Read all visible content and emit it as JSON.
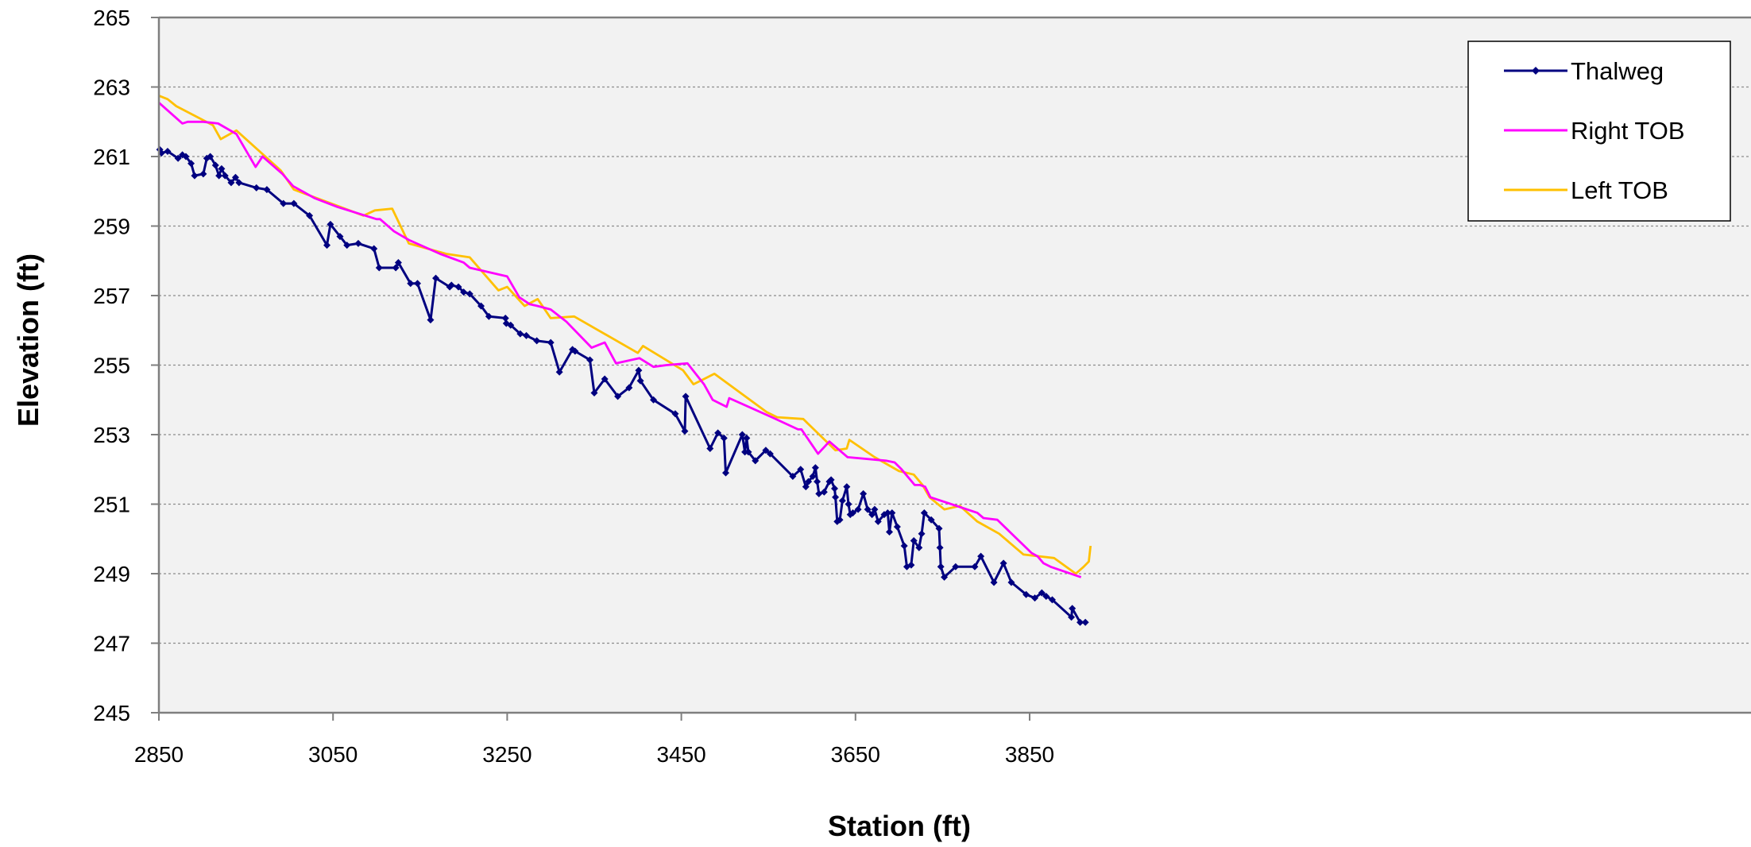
{
  "chart_data": {
    "type": "line",
    "title": "",
    "xlabel": "Station (ft)",
    "ylabel": "Elevation (ft)",
    "xlim": [
      2850,
      4050
    ],
    "ylim": [
      245,
      265
    ],
    "x_ticks": [
      2850,
      3050,
      3250,
      3450,
      3650,
      3850
    ],
    "y_ticks": [
      245,
      247,
      249,
      251,
      253,
      255,
      257,
      259,
      261,
      263,
      265
    ],
    "grid": "horizontal dotted",
    "legend_position": "top-right",
    "colors": {
      "plot_background": "#f2f2f2",
      "grid": "#8c8c8c",
      "axis": "#7f7f7f"
    },
    "series": [
      {
        "name": "Thalweg",
        "color": "#000080",
        "marker": "diamond",
        "points": [
          [
            2851,
            261.2
          ],
          [
            2853,
            261.1
          ],
          [
            2860,
            261.15
          ],
          [
            2872,
            260.95
          ],
          [
            2877,
            261.05
          ],
          [
            2881,
            261.0
          ],
          [
            2887,
            260.8
          ],
          [
            2891,
            260.45
          ],
          [
            2901,
            260.5
          ],
          [
            2905,
            260.95
          ],
          [
            2909,
            261.0
          ],
          [
            2915,
            260.75
          ],
          [
            2919,
            260.45
          ],
          [
            2922,
            260.65
          ],
          [
            2926,
            260.45
          ],
          [
            2933,
            260.25
          ],
          [
            2938,
            260.4
          ],
          [
            2942,
            260.25
          ],
          [
            2962,
            260.1
          ],
          [
            2974,
            260.05
          ],
          [
            2993,
            259.65
          ],
          [
            3005,
            259.65
          ],
          [
            3023,
            259.3
          ],
          [
            3043,
            258.45
          ],
          [
            3047,
            259.05
          ],
          [
            3058,
            258.7
          ],
          [
            3066,
            258.45
          ],
          [
            3079,
            258.5
          ],
          [
            3097,
            258.35
          ],
          [
            3103,
            257.8
          ],
          [
            3122,
            257.8
          ],
          [
            3125,
            257.95
          ],
          [
            3139,
            257.35
          ],
          [
            3147,
            257.35
          ],
          [
            3162,
            256.3
          ],
          [
            3168,
            257.5
          ],
          [
            3184,
            257.25
          ],
          [
            3186,
            257.3
          ],
          [
            3194,
            257.25
          ],
          [
            3200,
            257.1
          ],
          [
            3207,
            257.05
          ],
          [
            3220,
            256.7
          ],
          [
            3229,
            256.4
          ],
          [
            3248,
            256.35
          ],
          [
            3249,
            256.2
          ],
          [
            3254,
            256.15
          ],
          [
            3265,
            255.9
          ],
          [
            3272,
            255.85
          ],
          [
            3284,
            255.7
          ],
          [
            3300,
            255.65
          ],
          [
            3310,
            254.8
          ],
          [
            3325,
            255.45
          ],
          [
            3328,
            255.4
          ],
          [
            3345,
            255.15
          ],
          [
            3350,
            254.2
          ],
          [
            3362,
            254.6
          ],
          [
            3377,
            254.1
          ],
          [
            3390,
            254.35
          ],
          [
            3401,
            254.85
          ],
          [
            3403,
            254.55
          ],
          [
            3418,
            254.0
          ],
          [
            3443,
            253.6
          ],
          [
            3454,
            253.1
          ],
          [
            3455,
            254.1
          ],
          [
            3483,
            252.6
          ],
          [
            3492,
            253.05
          ],
          [
            3499,
            252.9
          ],
          [
            3501,
            251.9
          ],
          [
            3520,
            253.0
          ],
          [
            3523,
            252.5
          ],
          [
            3525,
            252.9
          ],
          [
            3527,
            252.5
          ],
          [
            3535,
            252.25
          ],
          [
            3547,
            252.55
          ],
          [
            3552,
            252.45
          ],
          [
            3578,
            251.8
          ],
          [
            3587,
            252.0
          ],
          [
            3593,
            251.5
          ],
          [
            3596,
            251.65
          ],
          [
            3601,
            251.8
          ],
          [
            3604,
            252.05
          ],
          [
            3606,
            251.65
          ],
          [
            3608,
            251.3
          ],
          [
            3614,
            251.35
          ],
          [
            3620,
            251.65
          ],
          [
            3622,
            251.7
          ],
          [
            3626,
            251.45
          ],
          [
            3627,
            251.2
          ],
          [
            3629,
            250.5
          ],
          [
            3632,
            250.55
          ],
          [
            3635,
            251.1
          ],
          [
            3640,
            251.5
          ],
          [
            3642,
            251.0
          ],
          [
            3644,
            250.7
          ],
          [
            3647,
            250.75
          ],
          [
            3653,
            250.85
          ],
          [
            3659,
            251.3
          ],
          [
            3664,
            250.85
          ],
          [
            3669,
            250.7
          ],
          [
            3672,
            250.85
          ],
          [
            3676,
            250.5
          ],
          [
            3683,
            250.7
          ],
          [
            3687,
            250.75
          ],
          [
            3689,
            250.2
          ],
          [
            3692,
            250.75
          ],
          [
            3698,
            250.35
          ],
          [
            3706,
            249.8
          ],
          [
            3709,
            249.2
          ],
          [
            3714,
            249.25
          ],
          [
            3717,
            249.95
          ],
          [
            3723,
            249.75
          ],
          [
            3726,
            250.15
          ],
          [
            3729,
            250.75
          ],
          [
            3737,
            250.55
          ],
          [
            3746,
            250.3
          ],
          [
            3747,
            249.75
          ],
          [
            3748,
            249.2
          ],
          [
            3752,
            248.9
          ],
          [
            3765,
            249.2
          ],
          [
            3787,
            249.2
          ],
          [
            3794,
            249.5
          ],
          [
            3809,
            248.75
          ],
          [
            3820,
            249.3
          ],
          [
            3829,
            248.75
          ],
          [
            3846,
            248.4
          ],
          [
            3856,
            248.3
          ],
          [
            3864,
            248.45
          ],
          [
            3869,
            248.35
          ],
          [
            3876,
            248.25
          ],
          [
            3898,
            247.75
          ],
          [
            3899,
            248.0
          ],
          [
            3908,
            247.6
          ],
          [
            3914,
            247.6
          ]
        ]
      },
      {
        "name": "Right TOB",
        "color": "#ff00ff",
        "marker": "none",
        "points": [
          [
            2850,
            262.55
          ],
          [
            2877,
            261.95
          ],
          [
            2883,
            262.0
          ],
          [
            2901,
            262.0
          ],
          [
            2918,
            261.95
          ],
          [
            2939,
            261.65
          ],
          [
            2961,
            260.7
          ],
          [
            2969,
            261.0
          ],
          [
            2992,
            260.5
          ],
          [
            3004,
            260.15
          ],
          [
            3029,
            259.8
          ],
          [
            3055,
            259.55
          ],
          [
            3100,
            259.2
          ],
          [
            3104,
            259.2
          ],
          [
            3120,
            258.85
          ],
          [
            3137,
            258.6
          ],
          [
            3146,
            258.5
          ],
          [
            3173,
            258.2
          ],
          [
            3200,
            257.95
          ],
          [
            3207,
            257.8
          ],
          [
            3250,
            257.55
          ],
          [
            3264,
            256.95
          ],
          [
            3276,
            256.75
          ],
          [
            3285,
            256.7
          ],
          [
            3300,
            256.6
          ],
          [
            3318,
            256.25
          ],
          [
            3347,
            255.5
          ],
          [
            3362,
            255.65
          ],
          [
            3375,
            255.05
          ],
          [
            3402,
            255.2
          ],
          [
            3418,
            254.95
          ],
          [
            3433,
            255.0
          ],
          [
            3457,
            255.05
          ],
          [
            3476,
            254.45
          ],
          [
            3486,
            254.0
          ],
          [
            3502,
            253.8
          ],
          [
            3505,
            254.05
          ],
          [
            3554,
            253.5
          ],
          [
            3584,
            253.15
          ],
          [
            3588,
            253.15
          ],
          [
            3607,
            252.45
          ],
          [
            3620,
            252.8
          ],
          [
            3641,
            252.35
          ],
          [
            3685,
            252.25
          ],
          [
            3695,
            252.2
          ],
          [
            3703,
            252.0
          ],
          [
            3718,
            251.55
          ],
          [
            3724,
            251.55
          ],
          [
            3730,
            251.5
          ],
          [
            3736,
            251.2
          ],
          [
            3760,
            251.0
          ],
          [
            3790,
            250.75
          ],
          [
            3797,
            250.6
          ],
          [
            3813,
            250.55
          ],
          [
            3852,
            249.6
          ],
          [
            3859,
            249.5
          ],
          [
            3866,
            249.3
          ],
          [
            3874,
            249.2
          ],
          [
            3909,
            248.9
          ]
        ]
      },
      {
        "name": "Left TOB",
        "color": "#ffc000",
        "marker": "none",
        "points": [
          [
            2850,
            262.75
          ],
          [
            2860,
            262.65
          ],
          [
            2870,
            262.45
          ],
          [
            2912,
            261.9
          ],
          [
            2921,
            261.5
          ],
          [
            2939,
            261.75
          ],
          [
            2990,
            260.6
          ],
          [
            3005,
            260.05
          ],
          [
            3053,
            259.6
          ],
          [
            3085,
            259.3
          ],
          [
            3098,
            259.45
          ],
          [
            3118,
            259.5
          ],
          [
            3137,
            258.5
          ],
          [
            3180,
            258.2
          ],
          [
            3207,
            258.1
          ],
          [
            3240,
            257.15
          ],
          [
            3250,
            257.25
          ],
          [
            3270,
            256.7
          ],
          [
            3285,
            256.9
          ],
          [
            3300,
            256.35
          ],
          [
            3327,
            256.4
          ],
          [
            3400,
            255.35
          ],
          [
            3406,
            255.55
          ],
          [
            3452,
            254.85
          ],
          [
            3464,
            254.45
          ],
          [
            3488,
            254.75
          ],
          [
            3548,
            253.65
          ],
          [
            3560,
            253.5
          ],
          [
            3590,
            253.45
          ],
          [
            3627,
            252.55
          ],
          [
            3640,
            252.6
          ],
          [
            3643,
            252.85
          ],
          [
            3672,
            252.35
          ],
          [
            3700,
            251.95
          ],
          [
            3717,
            251.85
          ],
          [
            3727,
            251.55
          ],
          [
            3735,
            251.2
          ],
          [
            3752,
            250.85
          ],
          [
            3770,
            250.95
          ],
          [
            3790,
            250.5
          ],
          [
            3815,
            250.15
          ],
          [
            3843,
            249.55
          ],
          [
            3878,
            249.45
          ],
          [
            3903,
            249.0
          ],
          [
            3912,
            249.2
          ],
          [
            3918,
            249.35
          ],
          [
            3920,
            249.8
          ]
        ]
      }
    ]
  }
}
